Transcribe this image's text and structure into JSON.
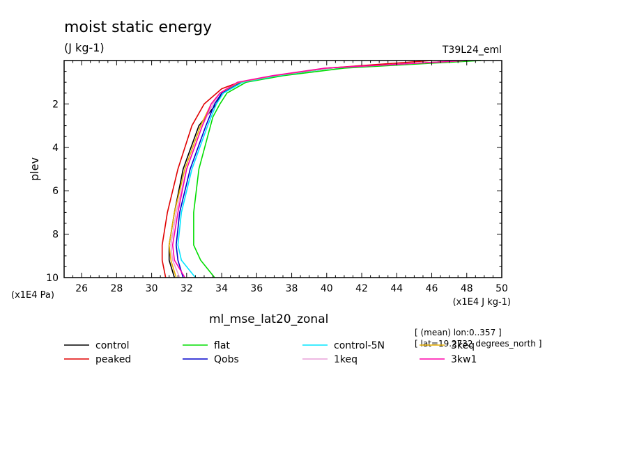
{
  "chart_data": {
    "type": "line",
    "title": "moist static energy",
    "units": "(J kg-1)",
    "run_label": "T39L24_eml",
    "xlabel": "(x1E4 J kg-1)",
    "ylabel": "plev",
    "y_unit_label": "(x1E4 Pa)",
    "bottom_label": "ml_mse_lat20_zonal",
    "annotations": [
      "[ (mean) lon:0..357 ]",
      "[ lat=19.2732 degrees_north ]"
    ],
    "xlim": [
      25,
      50
    ],
    "ylim": [
      10,
      0
    ],
    "xticks": [
      "26",
      "28",
      "30",
      "32",
      "34",
      "36",
      "38",
      "40",
      "42",
      "44",
      "46",
      "48",
      "50"
    ],
    "yticks": [
      "2",
      "4",
      "6",
      "8",
      "10"
    ],
    "grid": false,
    "legend_position": "bottom",
    "series": [
      {
        "name": "control",
        "color": "#000000",
        "x": [
          31.3,
          31.0,
          31.0,
          31.3,
          31.8,
          32.7,
          33.7,
          34.0,
          35.0,
          37.0,
          40.0,
          48.0
        ],
        "y": [
          10,
          9.2,
          8.5,
          7.0,
          5.0,
          3.0,
          2.0,
          1.5,
          1.0,
          0.7,
          0.35,
          0.0
        ]
      },
      {
        "name": "peaked",
        "color": "#e00000",
        "x": [
          30.8,
          30.6,
          30.6,
          30.9,
          31.5,
          32.3,
          33.0,
          34.0,
          35.0,
          37.0,
          40.0,
          46.0
        ],
        "y": [
          10,
          9.2,
          8.5,
          7.0,
          5.0,
          3.0,
          2.0,
          1.3,
          1.0,
          0.7,
          0.35,
          0.0
        ]
      },
      {
        "name": "flat",
        "color": "#00dd00",
        "x": [
          33.6,
          32.8,
          32.4,
          32.4,
          32.7,
          33.5,
          33.9,
          34.3,
          35.4,
          37.5,
          41.0,
          48.8
        ],
        "y": [
          10,
          9.2,
          8.5,
          7.0,
          5.0,
          2.6,
          2.0,
          1.5,
          1.0,
          0.7,
          0.35,
          0.0
        ]
      },
      {
        "name": "Qobs",
        "color": "#0000cc",
        "x": [
          31.8,
          31.5,
          31.4,
          31.6,
          32.2,
          33.1,
          33.6,
          34.0,
          35.1,
          37.1,
          40.2,
          48.0
        ],
        "y": [
          10,
          9.2,
          8.5,
          7.0,
          5.0,
          3.0,
          2.0,
          1.5,
          1.0,
          0.7,
          0.35,
          0.0
        ]
      },
      {
        "name": "control-5N",
        "color": "#00e5ff",
        "x": [
          32.5,
          31.7,
          31.5,
          31.7,
          32.3,
          33.2,
          33.7,
          34.1,
          35.2,
          37.2,
          40.2,
          48.0
        ],
        "y": [
          10,
          9.2,
          8.5,
          7.0,
          5.0,
          3.0,
          2.0,
          1.5,
          1.0,
          0.7,
          0.35,
          0.0
        ]
      },
      {
        "name": "1keq",
        "color": "#e8a0d8",
        "x": [
          31.6,
          31.2,
          31.1,
          31.4,
          32.0,
          32.9,
          33.5,
          33.9,
          35.0,
          37.0,
          40.1,
          48.0
        ],
        "y": [
          10,
          9.2,
          8.5,
          7.0,
          5.0,
          3.0,
          2.0,
          1.5,
          1.0,
          0.7,
          0.35,
          0.0
        ]
      },
      {
        "name": "3keq",
        "color": "#e8b000",
        "x": [
          31.4,
          31.1,
          31.0,
          31.3,
          31.9,
          32.8,
          33.4,
          33.9,
          35.0,
          37.0,
          40.0,
          48.0
        ],
        "y": [
          10,
          9.2,
          8.5,
          7.0,
          5.0,
          3.0,
          2.0,
          1.5,
          1.0,
          0.7,
          0.35,
          0.0
        ]
      },
      {
        "name": "3kw1",
        "color": "#ff00aa",
        "x": [
          31.9,
          31.3,
          31.2,
          31.5,
          32.0,
          32.9,
          33.4,
          33.9,
          34.9,
          36.9,
          39.9,
          48.0
        ],
        "y": [
          10,
          9.2,
          8.5,
          7.0,
          5.0,
          3.0,
          2.0,
          1.5,
          1.0,
          0.7,
          0.35,
          0.0
        ]
      }
    ]
  }
}
